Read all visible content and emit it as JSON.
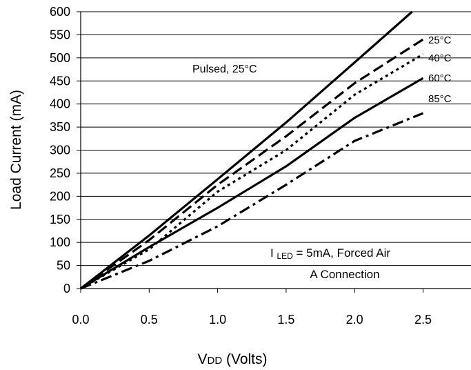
{
  "chart_data": {
    "type": "line",
    "title": "",
    "xlabel_main": "V",
    "xlabel_sub": "DD",
    "xlabel_rest": " (Volts)",
    "ylabel": "Load Current (mA)",
    "xlim": [
      0,
      2.85
    ],
    "ylim": [
      0,
      600
    ],
    "xticks": [
      0.0,
      0.5,
      1.0,
      1.5,
      2.0,
      2.5
    ],
    "xtick_labels": [
      "0.0",
      "0.5",
      "1.0",
      "1.5",
      "2.0",
      "2.5"
    ],
    "yticks": [
      0,
      50,
      100,
      150,
      200,
      250,
      300,
      350,
      400,
      450,
      500,
      550,
      600
    ],
    "ytick_labels": [
      "0",
      "50",
      "100",
      "150",
      "200",
      "250",
      "300",
      "350",
      "400",
      "450",
      "500",
      "550",
      "600"
    ],
    "grid": "horizontal",
    "series": [
      {
        "name": "Pulsed, 25°C",
        "style": "solid",
        "x": [
          0,
          0.5,
          1.0,
          1.5,
          2.0,
          2.42
        ],
        "y": [
          0,
          115,
          237,
          360,
          490,
          600
        ]
      },
      {
        "name": "25°C",
        "style": "dash",
        "x": [
          0,
          0.5,
          1.0,
          1.5,
          2.0,
          2.5
        ],
        "y": [
          0,
          105,
          225,
          330,
          445,
          540
        ]
      },
      {
        "name": "40°C",
        "style": "dot",
        "x": [
          0,
          0.5,
          1.0,
          1.5,
          2.0,
          2.5
        ],
        "y": [
          0,
          85,
          210,
          300,
          420,
          508
        ]
      },
      {
        "name": "60°C",
        "style": "solid",
        "x": [
          0,
          0.5,
          1.0,
          1.5,
          2.0,
          2.5
        ],
        "y": [
          0,
          90,
          175,
          265,
          370,
          456
        ]
      },
      {
        "name": "85°C",
        "style": "dashdot",
        "x": [
          0,
          0.5,
          1.0,
          1.5,
          2.0,
          2.5
        ],
        "y": [
          0,
          60,
          135,
          225,
          320,
          380
        ]
      }
    ],
    "annotations": {
      "pulsed": "Pulsed, 25°C",
      "iled_prefix": "I ",
      "iled_sub": "LED",
      "iled_rest": " = 5mA, Forced Air",
      "connection": "A Connection"
    },
    "series_labels": [
      "25°C",
      "40°C",
      "60°C",
      "85°C"
    ]
  }
}
